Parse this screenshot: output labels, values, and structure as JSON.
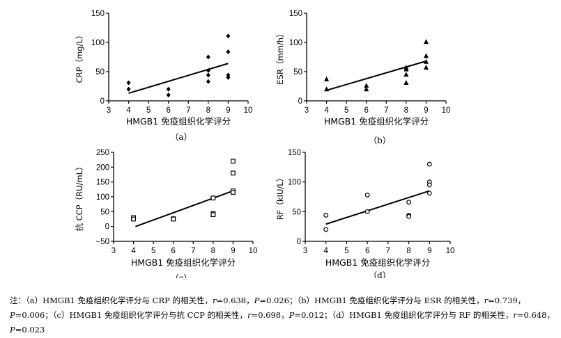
{
  "chart_data": [
    {
      "type": "scatter",
      "panel_label": "（a）",
      "xlabel": "HMGB1 免疫组织化学评分",
      "ylabel": "CRP（mg/L）",
      "xlim": [
        3,
        10
      ],
      "ylim": [
        0,
        150
      ],
      "xticks": [
        3,
        4,
        5,
        6,
        7,
        8,
        9,
        10
      ],
      "yticks": [
        0,
        50,
        100,
        150
      ],
      "marker": "filled-diamond",
      "points": [
        [
          4,
          31
        ],
        [
          4,
          20
        ],
        [
          6,
          20
        ],
        [
          6,
          10
        ],
        [
          8,
          75
        ],
        [
          8,
          52
        ],
        [
          8,
          44
        ],
        [
          8,
          33
        ],
        [
          9,
          111
        ],
        [
          9,
          84
        ],
        [
          9,
          44
        ],
        [
          9,
          40
        ]
      ],
      "fit_line": [
        [
          4,
          13
        ],
        [
          9,
          64
        ]
      ]
    },
    {
      "type": "scatter",
      "panel_label": "（b）",
      "xlabel": "HMGB1 免疫组织化学评分",
      "ylabel": "ESR（mm/h）",
      "xlim": [
        3,
        10
      ],
      "ylim": [
        0,
        150
      ],
      "xticks": [
        3,
        4,
        5,
        6,
        7,
        8,
        9,
        10
      ],
      "yticks": [
        0,
        50,
        100,
        150
      ],
      "marker": "filled-triangle",
      "points": [
        [
          4,
          37
        ],
        [
          4,
          20
        ],
        [
          6,
          26
        ],
        [
          6,
          20
        ],
        [
          8,
          57
        ],
        [
          8,
          54
        ],
        [
          8,
          45
        ],
        [
          8,
          31
        ],
        [
          9,
          101
        ],
        [
          9,
          77
        ],
        [
          9,
          67
        ],
        [
          9,
          57
        ]
      ],
      "fit_line": [
        [
          4,
          18
        ],
        [
          9,
          68
        ]
      ]
    },
    {
      "type": "scatter",
      "panel_label": "（c）",
      "xlabel": "HMGB1 免疫组织化学评分",
      "ylabel": "抗 CCP（RU/mL）",
      "xlim": [
        3,
        10
      ],
      "ylim": [
        -50,
        250
      ],
      "xticks": [
        3,
        4,
        5,
        6,
        7,
        8,
        9,
        10
      ],
      "yticks": [
        -50,
        0,
        50,
        100,
        150,
        200,
        250
      ],
      "ytick_labels": [
        "−50",
        "0",
        "50",
        "100",
        "150",
        "200",
        "250"
      ],
      "marker": "open-square",
      "points": [
        [
          4,
          30
        ],
        [
          4,
          25
        ],
        [
          6,
          26
        ],
        [
          6,
          25
        ],
        [
          8,
          96
        ],
        [
          8,
          44
        ],
        [
          8,
          40
        ],
        [
          9,
          220
        ],
        [
          9,
          180
        ],
        [
          9,
          120
        ],
        [
          9,
          115
        ]
      ],
      "fit_line": [
        [
          4.1,
          0
        ],
        [
          9,
          120
        ]
      ]
    },
    {
      "type": "scatter",
      "panel_label": "（d）",
      "xlabel": "HMGB1 免疫组织化学评分",
      "ylabel": "RF（kIU/L）",
      "xlim": [
        3,
        10
      ],
      "ylim": [
        0,
        150
      ],
      "xticks": [
        3,
        4,
        5,
        6,
        7,
        8,
        9,
        10
      ],
      "yticks": [
        0,
        50,
        100,
        150
      ],
      "marker": "open-circle",
      "points": [
        [
          4,
          44
        ],
        [
          4,
          20
        ],
        [
          6,
          78
        ],
        [
          6,
          50
        ],
        [
          8,
          66
        ],
        [
          8,
          44
        ],
        [
          8,
          42
        ],
        [
          9,
          130
        ],
        [
          9,
          100
        ],
        [
          9,
          95
        ],
        [
          9,
          81
        ]
      ],
      "fit_line": [
        [
          4,
          29
        ],
        [
          9,
          85
        ]
      ]
    }
  ],
  "note": {
    "prefix": "注：（a）HMGB1 免疫组织化学评分与 CRP 的相关性，",
    "a_r": "r",
    "a_r_val": "=0.638，",
    "a_p": "P",
    "a_p_val": "=0.026；（b）HMGB1 免疫组织化学评分与 ESR 的相关性，",
    "b_r": "r",
    "b_r_val": "=0.739，",
    "b_p": "P",
    "b_p_val": "=0.006；（c）HMGB1 免疫组织化学评分与抗 CCP 的相关性，",
    "c_r": "r",
    "c_r_val": "=0.698，",
    "c_p": "P",
    "c_p_val": "=0.012；（d）HMGB1 免疫组织化学评分与 RF 的相关性，",
    "d_r": "r",
    "d_r_val": "=0.648，",
    "d_p": "P",
    "d_p_val": "=0.023"
  }
}
